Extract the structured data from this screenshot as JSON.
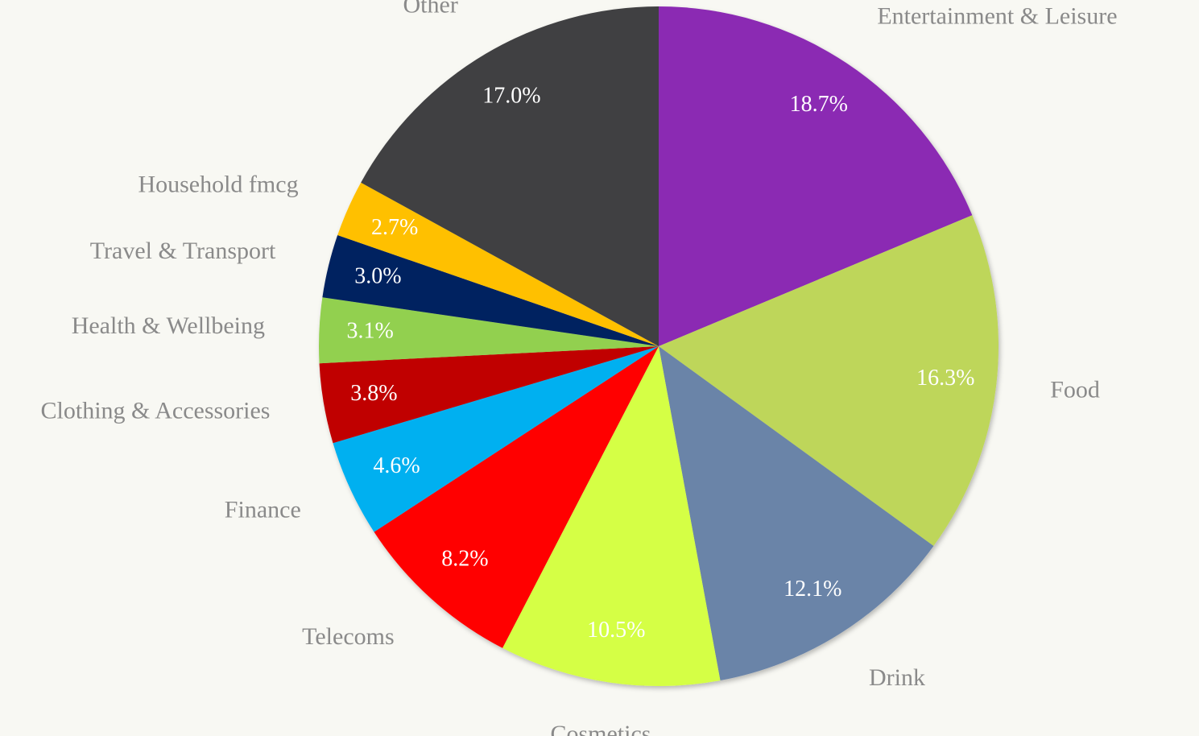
{
  "chart_data": {
    "type": "pie",
    "categories": [
      "Entertainment & Leisure",
      "Food",
      "Drink",
      "Cosmetics",
      "Telecoms",
      "Finance",
      "Clothing & Accessories",
      "Health & Wellbeing",
      "Travel & Transport",
      "Household fmcg",
      "Other"
    ],
    "values": [
      18.7,
      16.3,
      12.1,
      10.5,
      8.2,
      4.6,
      3.8,
      3.1,
      3.0,
      2.7,
      17.0
    ],
    "value_labels": [
      "18.7%",
      "16.3%",
      "12.1%",
      "10.5%",
      "8.2%",
      "4.6%",
      "3.8%",
      "3.1%",
      "3.0%",
      "2.7%",
      "17.0%"
    ],
    "colors": [
      "#8b2cb3",
      "#bed65a",
      "#6b84a8",
      "#d5ff44",
      "#ff0000",
      "#00b0f0",
      "#c00000",
      "#92d050",
      "#002060",
      "#ffc000",
      "#404042"
    ]
  }
}
